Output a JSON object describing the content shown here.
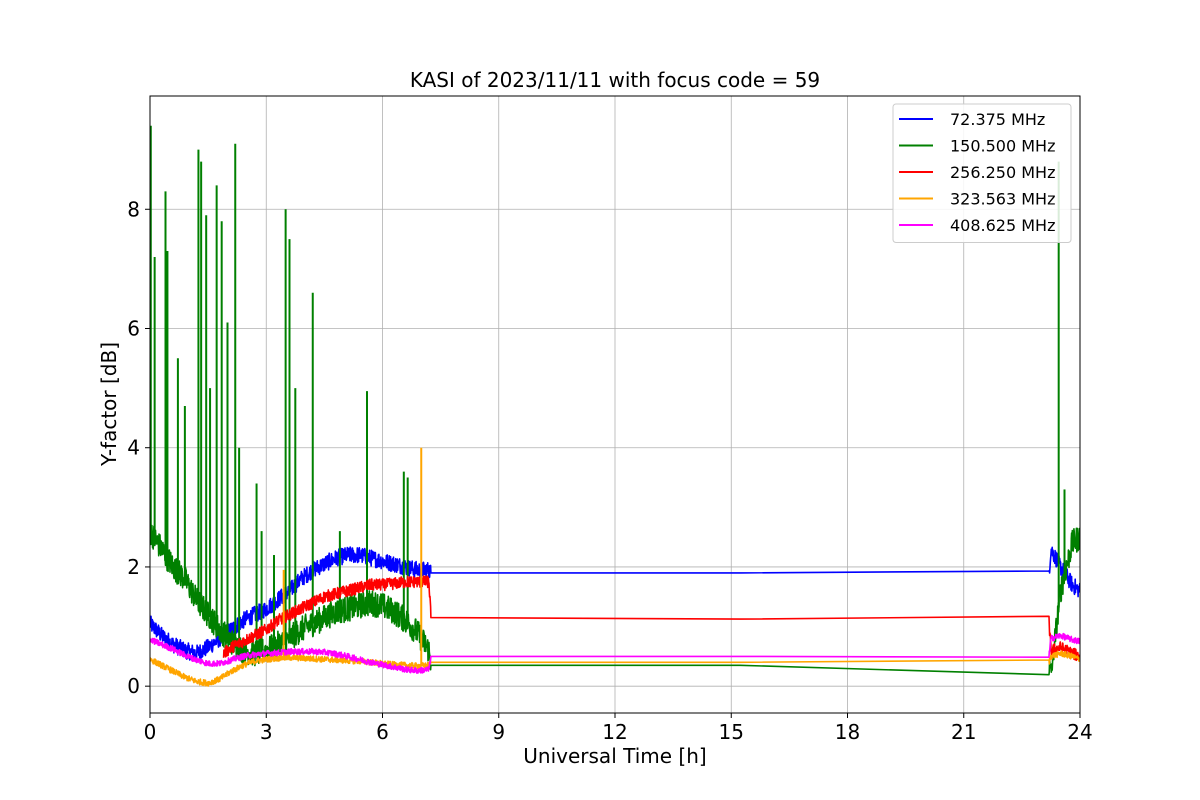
{
  "chart_data": {
    "type": "line",
    "title": "KASI of 2023/11/11 with focus code = 59",
    "xlabel": "Universal Time [h]",
    "ylabel": "Y-factor [dB]",
    "xlim": [
      0,
      24
    ],
    "ylim": [
      -0.45,
      9.9
    ],
    "xticks": [
      0,
      3,
      6,
      9,
      12,
      15,
      18,
      21,
      24
    ],
    "yticks": [
      0,
      2,
      4,
      6,
      8
    ],
    "grid": true,
    "legend_position": "top-right",
    "series": [
      {
        "name": " 72.375 MHz",
        "color": "#0000ff",
        "x": [
          0,
          0.3,
          0.6,
          0.9,
          1.2,
          1.5,
          1.8,
          2.1,
          2.4,
          2.7,
          3.0,
          3.3,
          3.6,
          3.9,
          4.2,
          4.5,
          4.8,
          5.1,
          5.4,
          5.7,
          6.0,
          6.3,
          6.6,
          6.9,
          7.2,
          7.25,
          23.2,
          23.25,
          23.5,
          23.8,
          24
        ],
        "y": [
          1.05,
          0.85,
          0.7,
          0.6,
          0.55,
          0.65,
          0.8,
          0.95,
          1.1,
          1.2,
          1.3,
          1.45,
          1.6,
          1.8,
          1.95,
          2.05,
          2.15,
          2.2,
          2.2,
          2.15,
          2.1,
          2.05,
          2.0,
          1.95,
          1.95,
          1.9,
          1.9,
          2.3,
          2.0,
          1.7,
          1.6
        ],
        "noise": 0.14
      },
      {
        "name": "150.500 MHz",
        "color": "#008000",
        "x": [
          0,
          0.3,
          0.6,
          0.9,
          1.2,
          1.5,
          1.8,
          2.1,
          2.4,
          2.7,
          3.0,
          3.3,
          3.6,
          3.9,
          4.2,
          4.5,
          4.8,
          5.1,
          5.4,
          5.7,
          6.0,
          6.3,
          6.6,
          6.9,
          7.2,
          7.25,
          23.2,
          23.25,
          23.5,
          23.8,
          24
        ],
        "y": [
          2.6,
          2.3,
          2.0,
          1.8,
          1.45,
          1.2,
          0.95,
          0.75,
          0.6,
          0.55,
          0.6,
          0.7,
          0.8,
          0.95,
          1.05,
          1.15,
          1.25,
          1.3,
          1.35,
          1.4,
          1.35,
          1.25,
          1.1,
          0.9,
          0.6,
          0.35,
          0.35,
          0.2,
          1.6,
          2.4,
          2.5
        ],
        "noise": 0.22,
        "spikes": [
          [
            0.02,
            9.4
          ],
          [
            0.12,
            7.2
          ],
          [
            0.4,
            8.3
          ],
          [
            0.45,
            7.3
          ],
          [
            0.72,
            5.5
          ],
          [
            0.9,
            4.7
          ],
          [
            1.25,
            9.0
          ],
          [
            1.32,
            8.8
          ],
          [
            1.45,
            7.9
          ],
          [
            1.55,
            5.0
          ],
          [
            1.72,
            8.4
          ],
          [
            1.85,
            7.8
          ],
          [
            2.0,
            6.1
          ],
          [
            2.2,
            9.1
          ],
          [
            2.3,
            4.0
          ],
          [
            2.75,
            3.4
          ],
          [
            2.88,
            2.6
          ],
          [
            3.2,
            2.2
          ],
          [
            3.5,
            8.0
          ],
          [
            3.6,
            7.5
          ],
          [
            3.75,
            5.0
          ],
          [
            4.2,
            6.6
          ],
          [
            4.9,
            2.6
          ],
          [
            5.6,
            4.95
          ],
          [
            6.55,
            3.6
          ],
          [
            6.65,
            3.5
          ],
          [
            23.45,
            8.8
          ],
          [
            23.6,
            3.3
          ]
        ]
      },
      {
        "name": "256.250 MHz",
        "color": "#ff0000",
        "x": [
          1.9,
          2.1,
          2.4,
          2.7,
          3.0,
          3.3,
          3.6,
          3.9,
          4.2,
          4.5,
          4.8,
          5.1,
          5.4,
          5.7,
          6.0,
          6.3,
          6.6,
          6.9,
          7.2,
          7.25,
          23.2,
          23.25,
          23.5,
          23.8,
          24
        ],
        "y": [
          0.55,
          0.65,
          0.75,
          0.85,
          0.95,
          1.1,
          1.2,
          1.3,
          1.4,
          1.5,
          1.55,
          1.6,
          1.65,
          1.7,
          1.7,
          1.72,
          1.75,
          1.75,
          1.75,
          1.15,
          1.1,
          0.6,
          0.65,
          0.55,
          0.5
        ],
        "noise": 0.1
      },
      {
        "name": "323.563 MHz",
        "color": "#ffa500",
        "x": [
          0,
          0.3,
          0.6,
          0.9,
          1.2,
          1.5,
          1.8,
          2.1,
          2.4,
          2.7,
          3.0,
          3.3,
          3.6,
          3.9,
          4.2,
          4.5,
          4.8,
          5.1,
          5.4,
          5.7,
          6.0,
          6.3,
          6.6,
          6.9,
          7.2,
          7.25,
          23.2,
          23.25,
          23.5,
          23.8,
          24
        ],
        "y": [
          0.45,
          0.35,
          0.25,
          0.15,
          0.08,
          0.05,
          0.12,
          0.25,
          0.35,
          0.42,
          0.45,
          0.47,
          0.48,
          0.47,
          0.46,
          0.45,
          0.44,
          0.43,
          0.42,
          0.4,
          0.38,
          0.36,
          0.35,
          0.34,
          0.35,
          0.4,
          0.4,
          0.5,
          0.55,
          0.5,
          0.45
        ],
        "noise": 0.05,
        "spikes": [
          [
            3.45,
            1.95
          ],
          [
            7.0,
            4.0
          ]
        ]
      },
      {
        "name": "408.625 MHz",
        "color": "#ff00ff",
        "x": [
          0,
          0.3,
          0.6,
          0.9,
          1.2,
          1.5,
          1.8,
          2.1,
          2.4,
          2.7,
          3.0,
          3.3,
          3.6,
          3.9,
          4.2,
          4.5,
          4.8,
          5.1,
          5.4,
          5.7,
          6.0,
          6.3,
          6.6,
          6.9,
          7.2,
          7.25,
          23.2,
          23.25,
          23.5,
          23.8,
          24
        ],
        "y": [
          0.78,
          0.7,
          0.62,
          0.52,
          0.44,
          0.38,
          0.38,
          0.44,
          0.5,
          0.53,
          0.55,
          0.56,
          0.58,
          0.58,
          0.58,
          0.57,
          0.54,
          0.5,
          0.45,
          0.4,
          0.36,
          0.32,
          0.28,
          0.26,
          0.28,
          0.5,
          0.5,
          0.8,
          0.85,
          0.78,
          0.75
        ],
        "noise": 0.05
      }
    ]
  }
}
